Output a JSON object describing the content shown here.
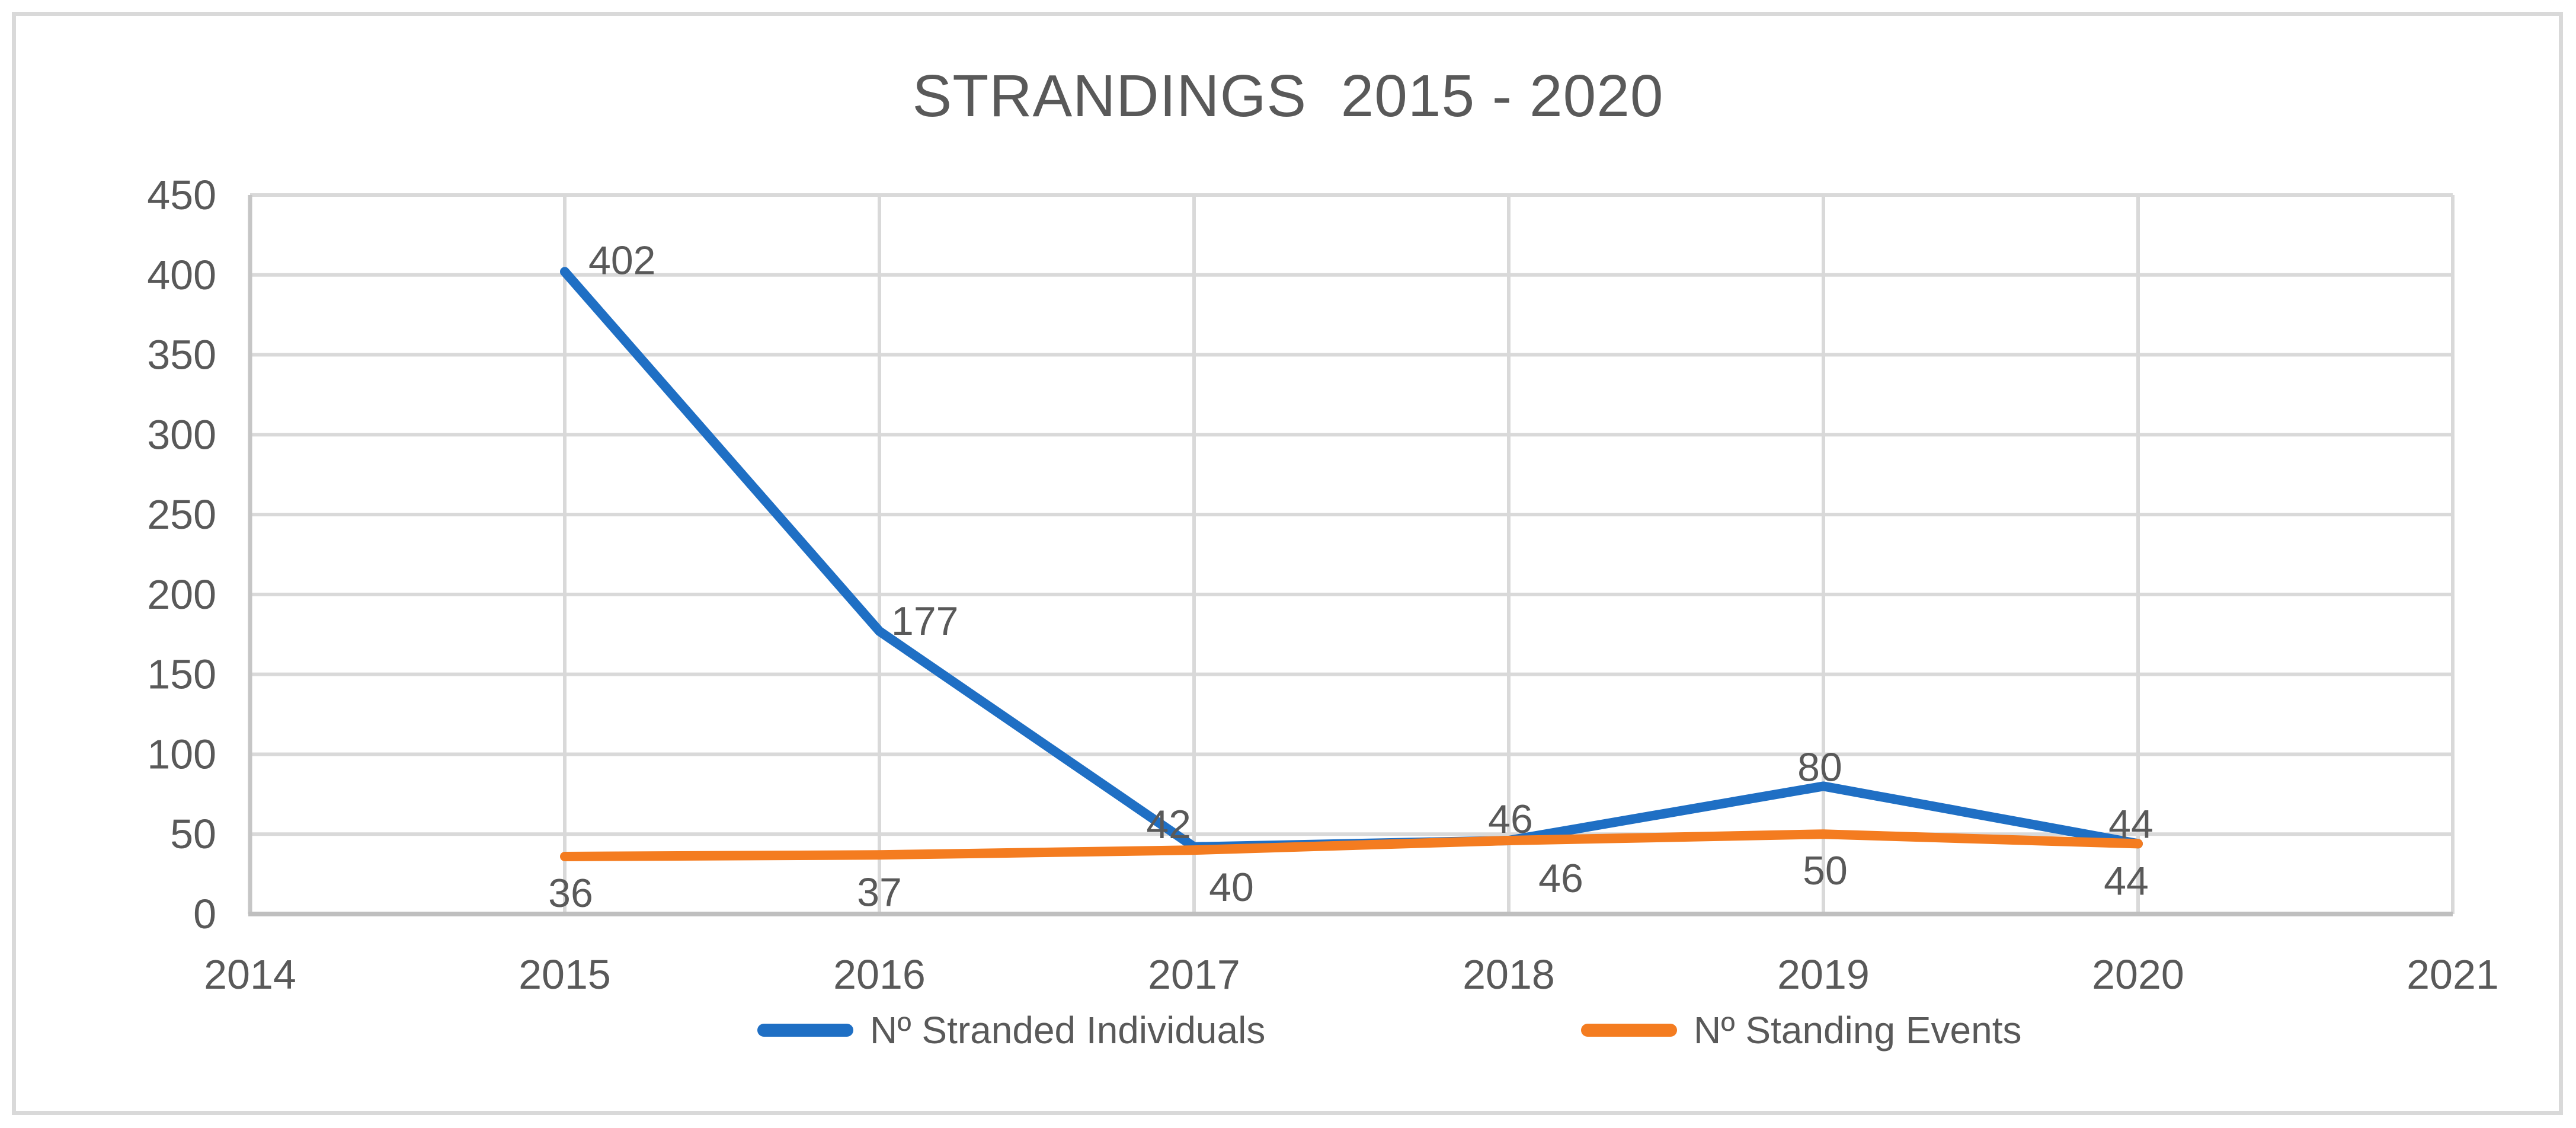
{
  "figure": {
    "title": "STRANDINGS  2015 - 2020"
  },
  "chart_data": {
    "type": "line",
    "title": "STRANDINGS  2015 - 2020",
    "x_categories": [
      2014,
      2015,
      2016,
      2017,
      2018,
      2019,
      2020,
      2021
    ],
    "data_years": [
      2015,
      2016,
      2017,
      2018,
      2019,
      2020
    ],
    "series": [
      {
        "name": "Nº Stranded Individuals",
        "color": "#1F6FC4",
        "values": [
          402,
          177,
          42,
          46,
          80,
          44
        ]
      },
      {
        "name": "Nº Standing Events",
        "color": "#F47C20",
        "values": [
          36,
          37,
          40,
          46,
          50,
          44
        ]
      }
    ],
    "ylim": [
      0,
      450
    ],
    "y_tick_step": 50,
    "y_ticks": [
      0,
      50,
      100,
      150,
      200,
      250,
      300,
      350,
      400,
      450
    ],
    "grid": true,
    "legend_position": "bottom",
    "colors": {
      "gridline": "#D9D9D9",
      "y_axis_line": "#C6C6C6",
      "x_axis_line": "#BFBFBF",
      "text": "#595959",
      "frame_border": "#D9D9D9",
      "background": "#FFFFFF"
    }
  }
}
